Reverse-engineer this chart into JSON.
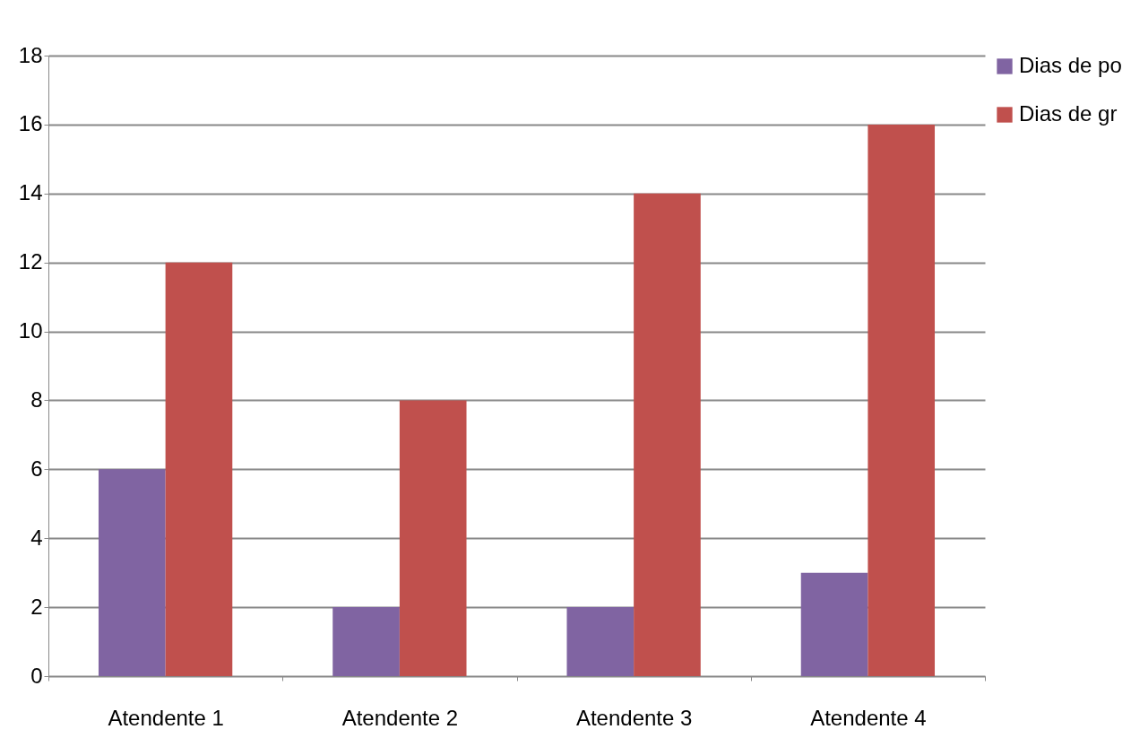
{
  "chart_data": {
    "type": "bar",
    "categories": [
      "Atendente 1",
      "Atendente 2",
      "Atendente 3",
      "Atendente 4"
    ],
    "series": [
      {
        "name": "Dias de po",
        "color": "#8064a2",
        "values": [
          6,
          2,
          2,
          3
        ]
      },
      {
        "name": "Dias de gr",
        "color": "#c0504d",
        "values": [
          12,
          8,
          14,
          16
        ]
      }
    ],
    "ylim": [
      0,
      18
    ],
    "yticks": [
      0,
      2,
      4,
      6,
      8,
      10,
      12,
      14,
      16,
      18
    ],
    "grid": "y",
    "legend": "right"
  }
}
